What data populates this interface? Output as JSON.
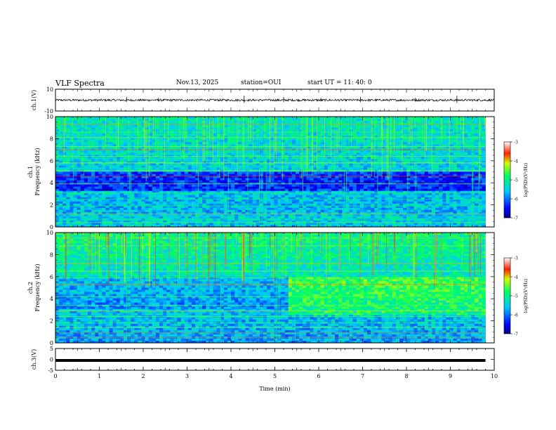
{
  "header": {
    "title": "VLF Spectra",
    "date": "Nov.13, 2025",
    "station": "station=OUI",
    "start_ut": "start UT =  11: 40: 0"
  },
  "chart_data": [
    {
      "type": "line",
      "panel": "ch1-waveform",
      "ylabel": "ch.1(V)",
      "ylim": [
        -10,
        10
      ],
      "y_ticks": [
        "10",
        "-10"
      ],
      "baseline": 0,
      "noise_amplitude": 1,
      "spikes": [
        [
          1.62,
          3
        ],
        [
          2.35,
          2
        ],
        [
          4.3,
          4
        ],
        [
          5.2,
          3
        ],
        [
          6.05,
          2
        ],
        [
          6.95,
          3
        ],
        [
          8.2,
          2
        ],
        [
          9.15,
          4
        ]
      ],
      "x_range": [
        0,
        10
      ]
    },
    {
      "type": "heatmap",
      "panel": "ch1-spectrogram",
      "ylabel": "ch.1\nFrequency (kHz)",
      "ylim": [
        0,
        10
      ],
      "y_ticks": [
        "0",
        "2",
        "4",
        "6",
        "8",
        "10"
      ],
      "data_x_range": [
        0,
        9.8
      ],
      "colorbar": {
        "label": "log(PSD)(V²/Hz)",
        "range": [
          -7,
          -3
        ],
        "ticks": [
          "-3",
          "-4",
          "-5",
          "-6",
          "-7"
        ]
      },
      "lines_khz": [
        0.4,
        0.7,
        1.2,
        1.9,
        2.5,
        3.1,
        3.9,
        4.6,
        5.1,
        5.8,
        6.4,
        7.0,
        7.3,
        8.1,
        8.6,
        9.3
      ],
      "dark_band_khz": [
        3.3,
        5.0
      ]
    },
    {
      "type": "heatmap",
      "panel": "ch2-spectrogram",
      "ylabel": "ch.2\nFrequency (kHz)",
      "ylim": [
        0,
        10
      ],
      "y_ticks": [
        "0",
        "2",
        "4",
        "6",
        "8",
        "10"
      ],
      "data_x_range": [
        0,
        9.8
      ],
      "colorbar": {
        "label": "log(PSD)(V²/Hz)",
        "range": [
          -7,
          -3
        ],
        "ticks": [
          "-3",
          "-4",
          "-5",
          "-6",
          "-7"
        ]
      },
      "lines_khz": [
        0.5,
        0.9,
        1.4,
        1.8,
        2.4,
        2.9,
        3.4,
        4.2,
        5.3,
        5.9,
        6.5,
        7.2,
        8.0,
        8.8,
        9.5
      ],
      "transition_min": 5.3
    },
    {
      "type": "line",
      "panel": "ch3-waveform",
      "ylabel": "ch.3(V)",
      "ylim": [
        -5,
        5
      ],
      "y_ticks": [
        "5",
        "0",
        "-5"
      ],
      "baseline": -0.5,
      "x_range": [
        0,
        9.8
      ]
    }
  ],
  "x_axis": {
    "label": "Time (min)",
    "range": [
      0,
      10
    ],
    "ticks": [
      "0",
      "1",
      "2",
      "3",
      "4",
      "5",
      "6",
      "7",
      "8",
      "9",
      "10"
    ]
  },
  "colors": {
    "axes": "#000000",
    "background": "#ffffff"
  }
}
